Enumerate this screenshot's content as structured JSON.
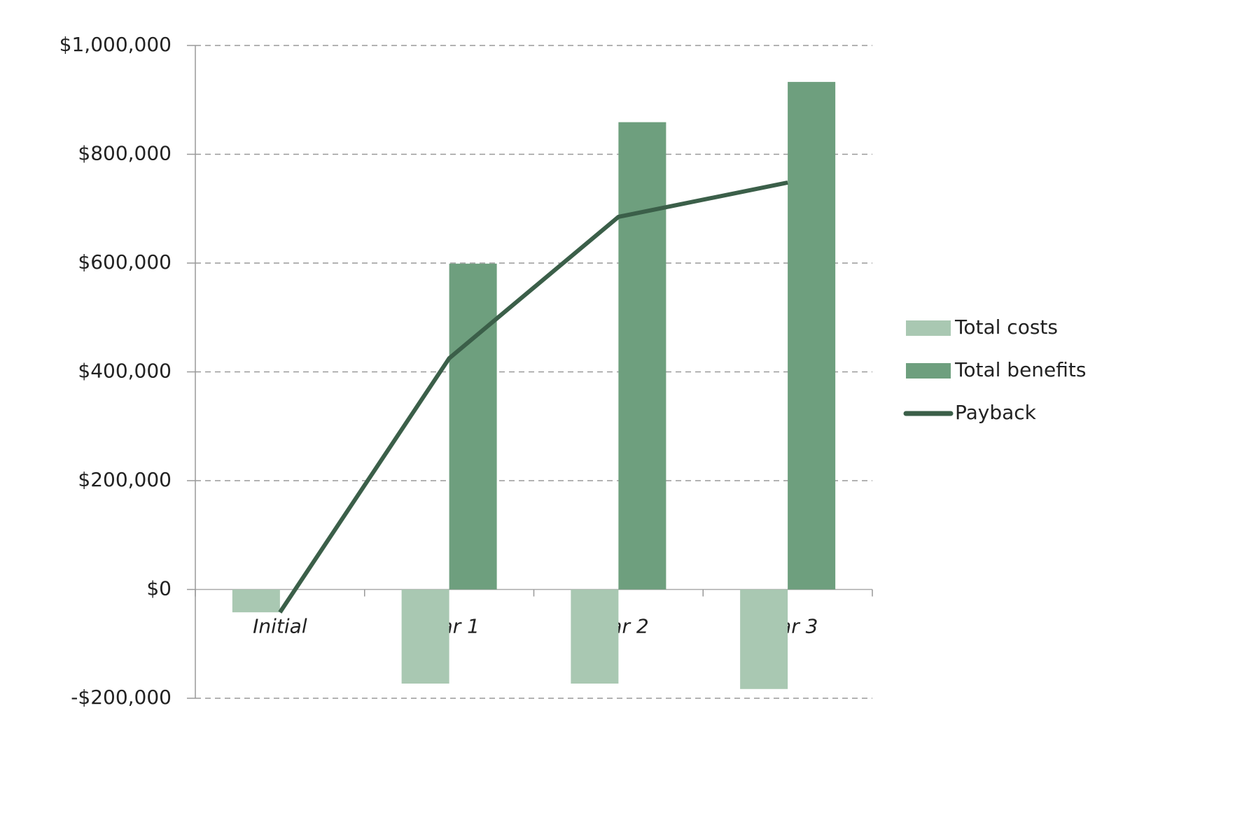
{
  "chart_data": {
    "type": "bar",
    "categories": [
      "Initial",
      "Year 1",
      "Year 2",
      "Year 3"
    ],
    "series": [
      {
        "name": "Total costs",
        "type": "bar",
        "color": "#a9c8b2",
        "values": [
          -42000,
          -173000,
          -173000,
          -183000
        ]
      },
      {
        "name": "Total benefits",
        "type": "bar",
        "color": "#6e9f7e",
        "values": [
          null,
          599000,
          859000,
          933000
        ]
      },
      {
        "name": "Payback",
        "type": "line",
        "color": "#3b5f49",
        "values": [
          -42000,
          425000,
          685000,
          748000
        ]
      }
    ],
    "ylim": [
      -200000,
      1000000
    ],
    "yticks": [
      {
        "value": -200000,
        "label": "-$200,000"
      },
      {
        "value": 0,
        "label": "$0"
      },
      {
        "value": 200000,
        "label": "$200,000"
      },
      {
        "value": 400000,
        "label": "$400,000"
      },
      {
        "value": 600000,
        "label": "$600,000"
      },
      {
        "value": 800000,
        "label": "$800,000"
      },
      {
        "value": 1000000,
        "label": "$1,000,000"
      }
    ],
    "grid": true,
    "legend": "right"
  }
}
